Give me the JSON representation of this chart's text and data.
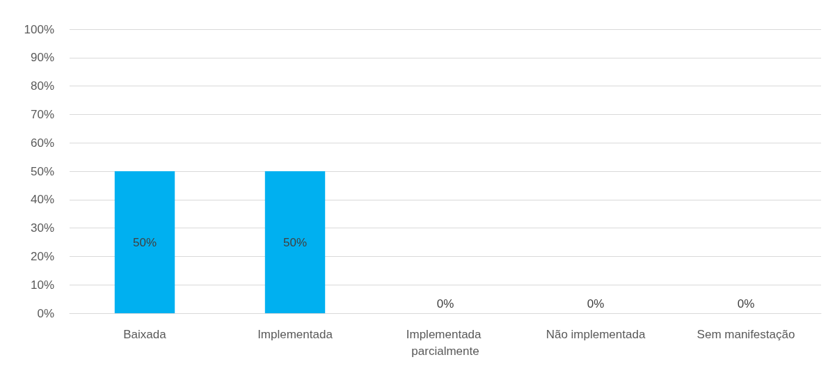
{
  "chart_data": {
    "type": "bar",
    "categories": [
      "Baixada",
      "Implementada",
      "Implementada parcialmente",
      "Não implementada",
      "Sem manifestação"
    ],
    "values": [
      50,
      50,
      0,
      0,
      0
    ],
    "value_labels": [
      "50%",
      "50%",
      "0%",
      "0%",
      "0%"
    ],
    "color": "#00b0f0",
    "ylim": [
      0,
      100
    ],
    "yticks": [
      {
        "value": 0,
        "label": "0%"
      },
      {
        "value": 10,
        "label": "10%"
      },
      {
        "value": 20,
        "label": "20%"
      },
      {
        "value": 30,
        "label": "30%"
      },
      {
        "value": 40,
        "label": "40%"
      },
      {
        "value": 50,
        "label": "50%"
      },
      {
        "value": 60,
        "label": "60%"
      },
      {
        "value": 70,
        "label": "70%"
      },
      {
        "value": 80,
        "label": "80%"
      },
      {
        "value": 90,
        "label": "90%"
      },
      {
        "value": 100,
        "label": "100%"
      }
    ],
    "grid": "y"
  }
}
